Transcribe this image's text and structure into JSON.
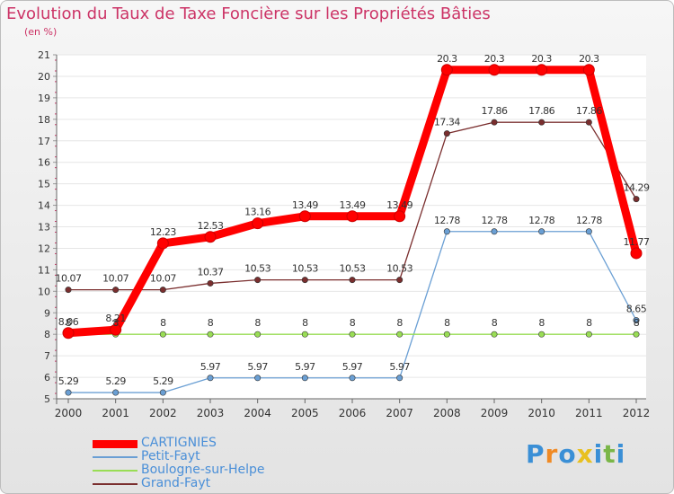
{
  "header": {
    "title": "Evolution du Taux de Taxe Foncière sur les Propriétés Bâties",
    "unit": "(en %)"
  },
  "logo": {
    "text": "Proxiti",
    "colors": [
      "#3a8fd6",
      "#f08a24",
      "#3a8fd6",
      "#e8c020",
      "#3a8fd6",
      "#7ab648",
      "#3a8fd6"
    ]
  },
  "chart_data": {
    "type": "line",
    "title": "Evolution du Taux de Taxe Foncière sur les Propriétés Bâties",
    "ylabel": "(en %)",
    "xlabel": "",
    "x": [
      "2000",
      "2001",
      "2002",
      "2003",
      "2004",
      "2005",
      "2006",
      "2007",
      "2008",
      "2009",
      "2010",
      "2011",
      "2012"
    ],
    "ylim": [
      5,
      21
    ],
    "yticks": [
      5,
      6,
      7,
      8,
      9,
      10,
      11,
      12,
      13,
      14,
      15,
      16,
      17,
      18,
      19,
      20,
      21
    ],
    "legend_position": "bottom-left",
    "series": [
      {
        "name": "CARTIGNIES",
        "color": "#ff0000",
        "emphasis": true,
        "values": [
          8.06,
          8.21,
          12.23,
          12.53,
          13.16,
          13.49,
          13.49,
          13.49,
          20.3,
          20.3,
          20.3,
          20.3,
          11.77
        ],
        "labels": [
          "8.06",
          "8.21",
          "12.23",
          "12.53",
          "13.16",
          "13.49",
          "13.49",
          "13.49",
          "20.3",
          "20.3",
          "20.3",
          "20.3",
          "11.77"
        ]
      },
      {
        "name": "Petit-Fayt",
        "color": "#6a9fd4",
        "values": [
          5.29,
          5.29,
          5.29,
          5.97,
          5.97,
          5.97,
          5.97,
          5.97,
          12.78,
          12.78,
          12.78,
          12.78,
          8.65
        ],
        "labels": [
          "5.29",
          "5.29",
          "5.29",
          "5.97",
          "5.97",
          "5.97",
          "5.97",
          "5.97",
          "12.78",
          "12.78",
          "12.78",
          "12.78",
          "8.65"
        ]
      },
      {
        "name": "Boulogne-sur-Helpe",
        "color": "#99dd55",
        "values": [
          8,
          8,
          8,
          8,
          8,
          8,
          8,
          8,
          8,
          8,
          8,
          8,
          8
        ],
        "labels": [
          "8",
          "8",
          "8",
          "8",
          "8",
          "8",
          "8",
          "8",
          "8",
          "8",
          "8",
          "8",
          "8"
        ]
      },
      {
        "name": "Grand-Fayt",
        "color": "#7a2e2e",
        "values": [
          10.07,
          10.07,
          10.07,
          10.37,
          10.53,
          10.53,
          10.53,
          10.53,
          17.34,
          17.86,
          17.86,
          17.86,
          14.29
        ],
        "labels": [
          "10.07",
          "10.07",
          "10.07",
          "10.37",
          "10.53",
          "10.53",
          "10.53",
          "10.53",
          "17.34",
          "17.86",
          "17.86",
          "17.86",
          "14.29"
        ]
      }
    ]
  }
}
